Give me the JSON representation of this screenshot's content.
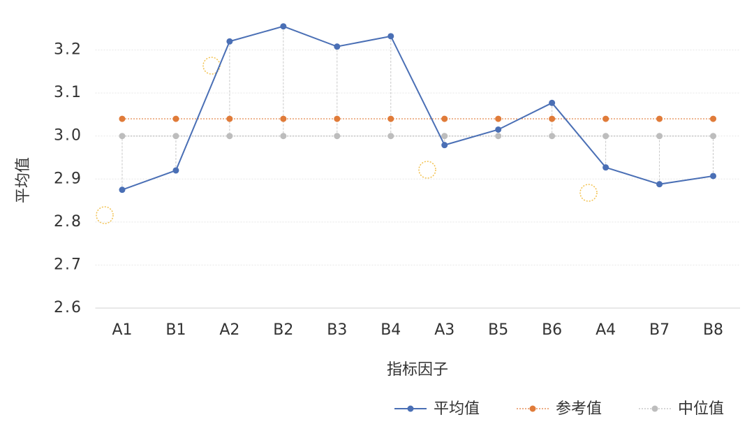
{
  "chart_data": {
    "type": "line",
    "x_label": "指标因子",
    "y_label": "平均值",
    "categories": [
      "A1",
      "B1",
      "A2",
      "B2",
      "B3",
      "B4",
      "A3",
      "B5",
      "B6",
      "A4",
      "B7",
      "B8"
    ],
    "series": [
      {
        "name": "平均值",
        "color": "#4a6fb5",
        "line": "solid",
        "values": [
          2.875,
          2.92,
          3.22,
          3.255,
          3.208,
          3.232,
          2.979,
          3.015,
          3.077,
          2.927,
          2.888,
          2.907
        ]
      },
      {
        "name": "参考值",
        "color": "#e07b39",
        "line": "dotted",
        "values": [
          3.04,
          3.04,
          3.04,
          3.04,
          3.04,
          3.04,
          3.04,
          3.04,
          3.04,
          3.04,
          3.04,
          3.04
        ]
      },
      {
        "name": "中位值",
        "color": "#bdbdbd",
        "line": "dotted",
        "values": [
          3,
          3,
          3,
          3,
          3,
          3,
          3,
          3,
          3,
          3,
          3,
          3
        ]
      }
    ],
    "ylim": [
      2.6,
      3.3
    ],
    "yticks": [
      2.6,
      2.7,
      2.8,
      2.9,
      {
        "value": 3,
        "label": "3.0"
      },
      3.1,
      3.2
    ],
    "grid": true,
    "drop_lines": true,
    "legend": "bottom-right"
  }
}
